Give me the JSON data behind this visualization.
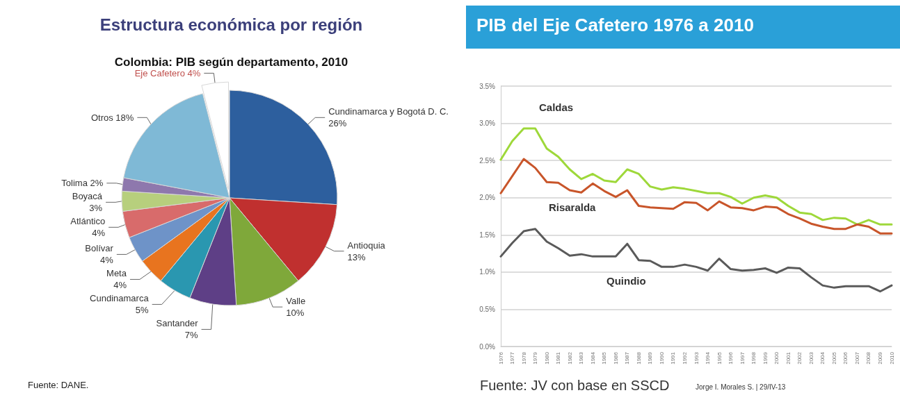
{
  "chart_data": [
    {
      "type": "pie",
      "title": "Estructura económica por región",
      "subtitle": "Colombia: PIB según departamento, 2010",
      "categories": [
        "Cundinamarca y Bogotá D. C.",
        "Antioquia",
        "Valle",
        "Santander",
        "Cundinamarca",
        "Meta",
        "Bolívar",
        "Atlántico",
        "Boyacá",
        "Tolima",
        "Otros",
        "Eje Cafetero"
      ],
      "values": [
        26,
        13,
        10,
        7,
        5,
        4,
        4,
        4,
        3,
        2,
        18,
        4
      ],
      "value_labels": [
        "26%",
        "13%",
        "10%",
        "7%",
        "5%",
        "4%",
        "4%",
        "4%",
        "3%",
        "2%",
        "18%",
        "4%"
      ],
      "colors": [
        "#2d5f9e",
        "#c0302f",
        "#7fa83a",
        "#5e3f86",
        "#2a97b0",
        "#e8741f",
        "#6e93c8",
        "#d86b6b",
        "#b7cf7d",
        "#8e78ad",
        "#7fb9d6",
        "#ffffff"
      ],
      "legend": false,
      "annotations": [
        "Fuente: DANE."
      ]
    },
    {
      "type": "line",
      "title": "PIB del Eje Cafetero 1976 a 2010",
      "categories": [
        "1976",
        "1977",
        "1978",
        "1979",
        "1980",
        "1981",
        "1982",
        "1983",
        "1984",
        "1985",
        "1986",
        "1987",
        "1988",
        "1989",
        "1990",
        "1991",
        "1992",
        "1993",
        "1994",
        "1995",
        "1996",
        "1997",
        "1998",
        "1999",
        "2000",
        "2001",
        "2002",
        "2003",
        "2004",
        "2005",
        "2006",
        "2007",
        "2008",
        "2009",
        "2010"
      ],
      "series": [
        {
          "name": "Caldas",
          "color": "#9ed83a",
          "values": [
            2.51,
            2.76,
            2.93,
            2.93,
            2.66,
            2.55,
            2.38,
            2.25,
            2.32,
            2.23,
            2.21,
            2.38,
            2.32,
            2.15,
            2.11,
            2.14,
            2.12,
            2.09,
            2.06,
            2.06,
            2.01,
            1.92,
            2.0,
            2.03,
            2.0,
            1.89,
            1.8,
            1.78,
            1.7,
            1.73,
            1.72,
            1.64,
            1.7,
            1.64,
            1.64
          ]
        },
        {
          "name": "Risaralda",
          "color": "#c8552a",
          "values": [
            2.06,
            2.29,
            2.52,
            2.4,
            2.21,
            2.2,
            2.1,
            2.07,
            2.19,
            2.09,
            2.01,
            2.1,
            1.89,
            1.87,
            1.86,
            1.85,
            1.94,
            1.93,
            1.83,
            1.95,
            1.87,
            1.86,
            1.83,
            1.88,
            1.87,
            1.78,
            1.72,
            1.65,
            1.61,
            1.58,
            1.58,
            1.64,
            1.61,
            1.52,
            1.52
          ]
        },
        {
          "name": "Quindio",
          "color": "#5a5a5a",
          "values": [
            1.21,
            1.39,
            1.55,
            1.58,
            1.41,
            1.32,
            1.22,
            1.24,
            1.21,
            1.21,
            1.21,
            1.38,
            1.16,
            1.15,
            1.07,
            1.07,
            1.1,
            1.07,
            1.02,
            1.18,
            1.04,
            1.02,
            1.03,
            1.05,
            0.99,
            1.06,
            1.05,
            0.93,
            0.82,
            0.79,
            0.81,
            0.81,
            0.81,
            0.74,
            0.82
          ]
        }
      ],
      "ylim": [
        0,
        3.5
      ],
      "yticks": [
        {
          "value": 0,
          "label": "0.0%"
        },
        {
          "value": 0.5,
          "label": "0.5%"
        },
        {
          "value": 1,
          "label": "1.0%"
        },
        {
          "value": 1.5,
          "label": "1.5%"
        },
        {
          "value": 2,
          "label": "2.0%"
        },
        {
          "value": 2.5,
          "label": "2.5%"
        },
        {
          "value": 3,
          "label": "3.0%"
        },
        {
          "value": 3.5,
          "label": "3.5%"
        }
      ],
      "grid": "y",
      "legend": false,
      "marker": "none",
      "line_style": "solid",
      "annotations": [
        "Fuente: JV con base en SSCD",
        "Jorge I. Morales S. | 29/IV-13"
      ]
    }
  ]
}
